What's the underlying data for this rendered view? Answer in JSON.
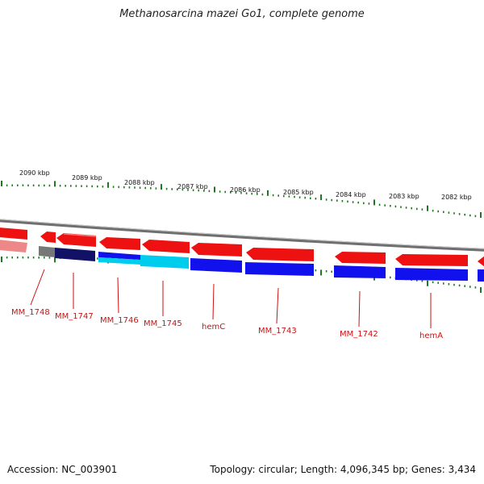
{
  "title": "Methanosarcina mazei Go1, complete genome",
  "footer": {
    "accession": "Accession: NC_003901",
    "summary": "Topology: circular; Length: 4,096,345 bp; Genes: 3,434"
  },
  "colors": {
    "forward_strand": "#ee1111",
    "reverse_strand": "#1111ee",
    "highlight_cyan": "#00ccee",
    "navy": "#111166",
    "gray": "#777777",
    "pink": "#ee8888",
    "tick": "#227722",
    "label": "#cc1111",
    "backbone": "#888888"
  },
  "scale": {
    "unit": "kbp",
    "markers": [
      {
        "label": "2090 kbp"
      },
      {
        "label": "2089 kbp"
      },
      {
        "label": "2088 kbp"
      },
      {
        "label": "2087 kbp"
      },
      {
        "label": "2086 kbp"
      },
      {
        "label": "2085 kbp"
      },
      {
        "label": "2084 kbp"
      },
      {
        "label": "2083 kbp"
      },
      {
        "label": "2082 kbp"
      }
    ]
  },
  "gene_labels": [
    {
      "label": "MM_1748"
    },
    {
      "label": "MM_1747"
    },
    {
      "label": "MM_1746"
    },
    {
      "label": "MM_1745"
    },
    {
      "label": "hemC"
    },
    {
      "label": "MM_1743"
    },
    {
      "label": "MM_1742"
    },
    {
      "label": "hemA"
    }
  ]
}
